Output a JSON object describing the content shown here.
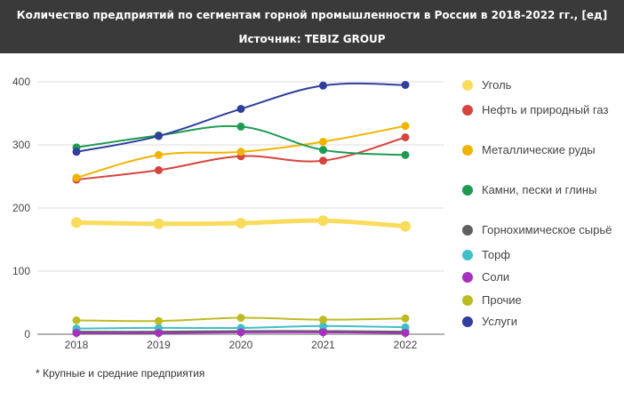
{
  "header": {
    "title": "Количество предприятий по сегментам горной промышленности в России в 2018-2022 гг., [ед]",
    "source": "Источник: TEBIZ GROUP"
  },
  "footnote": "* Крупные и средние предприятия",
  "chart_data": {
    "type": "line",
    "x": [
      "2018",
      "2019",
      "2020",
      "2021",
      "2022"
    ],
    "ylim": [
      0,
      400
    ],
    "yticks": [
      "0",
      "100",
      "200",
      "300",
      "400"
    ],
    "grid": true,
    "legend_position": "right",
    "series": [
      {
        "name": "Уголь",
        "color": "#f9dc5c",
        "values": [
          177,
          175,
          176,
          180,
          171
        ],
        "thick": true
      },
      {
        "name": "Нефть и природный газ",
        "color": "#d6443c",
        "values": [
          245,
          260,
          282,
          275,
          312
        ]
      },
      {
        "name": "Металлические руды",
        "color": "#f0b400",
        "values": [
          248,
          284,
          289,
          305,
          330
        ]
      },
      {
        "name": "Камни, пески и глины",
        "color": "#1e9a53",
        "values": [
          296,
          315,
          329,
          292,
          284
        ]
      },
      {
        "name": "Горнохимическое сырьё",
        "color": "#606060",
        "values": [
          4,
          4,
          5,
          5,
          4
        ]
      },
      {
        "name": "Торф",
        "color": "#3fbfc8",
        "values": [
          9,
          10,
          10,
          13,
          11
        ]
      },
      {
        "name": "Соли",
        "color": "#a531bd",
        "values": [
          2,
          2,
          3,
          3,
          2
        ]
      },
      {
        "name": "Прочие",
        "color": "#bdbb24",
        "values": [
          22,
          21,
          26,
          23,
          25
        ]
      },
      {
        "name": "Услуги",
        "color": "#2f3f9b",
        "values": [
          289,
          314,
          357,
          394,
          395
        ]
      }
    ]
  }
}
